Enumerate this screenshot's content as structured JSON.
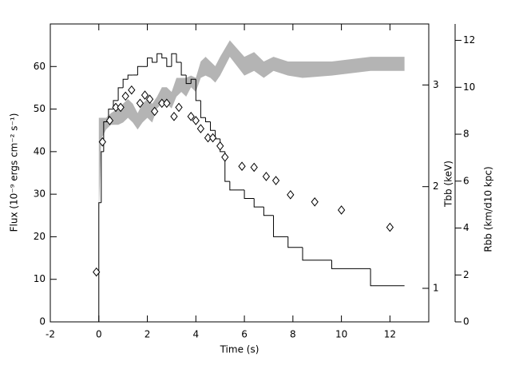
{
  "chart_data": [
    {
      "type": "histogram",
      "xlabel": "Time (s)",
      "ylabel": "Flux (10⁻⁹ ergs cm⁻² s⁻¹)",
      "xlim": [
        -2,
        13.6
      ],
      "xticks": [
        -2,
        0,
        2,
        4,
        6,
        8,
        10,
        12
      ],
      "ylim": [
        0,
        70
      ],
      "yticks": [
        0,
        10,
        20,
        30,
        40,
        50,
        60
      ],
      "color": "#000000",
      "bins": [
        0,
        0.1,
        0.2,
        0.4,
        0.6,
        0.8,
        1.0,
        1.2,
        1.4,
        1.6,
        1.8,
        2.0,
        2.2,
        2.4,
        2.6,
        2.8,
        3.0,
        3.2,
        3.4,
        3.6,
        3.8,
        4.0,
        4.2,
        4.4,
        4.6,
        4.8,
        5.0,
        5.2,
        5.4,
        6.0,
        6.4,
        6.8,
        7.2,
        7.8,
        8.4,
        9.6,
        11.2,
        12.6
      ],
      "values": [
        28,
        40,
        47,
        50,
        52,
        55,
        57,
        58,
        58,
        60,
        60,
        62,
        61,
        63,
        62,
        60,
        63,
        61,
        58,
        56,
        57,
        52,
        48,
        47,
        45,
        43,
        40,
        33,
        31,
        29,
        27,
        25,
        20,
        17.5,
        14.5,
        12.5,
        8.5
      ]
    },
    {
      "type": "scatter",
      "ylabel": "Tbb (keV)",
      "ylim": [
        0.67,
        3.6
      ],
      "yticks": [
        1,
        2,
        3
      ],
      "color": "#000000",
      "x": [
        -0.1,
        0.15,
        0.45,
        0.7,
        0.9,
        1.1,
        1.35,
        1.7,
        1.9,
        2.1,
        2.3,
        2.6,
        2.8,
        3.1,
        3.3,
        3.8,
        4.0,
        4.2,
        4.5,
        4.7,
        5.0,
        5.2,
        5.9,
        6.4,
        6.9,
        7.3,
        7.9,
        8.9,
        10.0,
        12.0
      ],
      "values": [
        1.16,
        2.44,
        2.65,
        2.78,
        2.78,
        2.89,
        2.95,
        2.82,
        2.9,
        2.86,
        2.74,
        2.82,
        2.82,
        2.69,
        2.78,
        2.69,
        2.65,
        2.57,
        2.48,
        2.48,
        2.4,
        2.29,
        2.2,
        2.19,
        2.1,
        2.06,
        1.92,
        1.85,
        1.77,
        1.6
      ]
    },
    {
      "type": "band",
      "ylabel": "Rbb (km/d10 kpc)",
      "ylim": [
        0,
        12.7
      ],
      "yticks": [
        0,
        2,
        4,
        6,
        8,
        10,
        12
      ],
      "color": "#b4b4b4",
      "x": [
        0,
        0.1,
        0.3,
        0.5,
        0.8,
        1.0,
        1.2,
        1.4,
        1.6,
        1.8,
        2.0,
        2.2,
        2.4,
        2.6,
        2.8,
        3.0,
        3.2,
        3.4,
        3.6,
        3.8,
        4.0,
        4.2,
        4.4,
        4.6,
        4.8,
        5.0,
        5.4,
        6.0,
        6.4,
        6.8,
        7.2,
        7.8,
        8.4,
        9.6,
        11.2,
        12.6
      ],
      "lower": [
        4.5,
        7.8,
        8.2,
        8.4,
        8.4,
        8.5,
        8.7,
        8.5,
        8.2,
        8.5,
        8.7,
        8.5,
        9.1,
        9.3,
        9.3,
        9.1,
        9.6,
        9.8,
        9.6,
        10.0,
        9.8,
        10.4,
        10.5,
        10.4,
        10.2,
        10.5,
        11.3,
        10.5,
        10.7,
        10.4,
        10.7,
        10.5,
        10.4,
        10.5,
        10.7,
        10.7
      ],
      "upper": [
        8.7,
        8.7,
        8.7,
        8.9,
        9.1,
        9.3,
        9.5,
        9.3,
        8.9,
        9.3,
        9.5,
        9.3,
        9.6,
        10.0,
        10.0,
        9.8,
        10.4,
        10.4,
        10.4,
        10.5,
        10.4,
        11.1,
        11.3,
        11.1,
        10.9,
        11.3,
        12.0,
        11.3,
        11.5,
        11.1,
        11.3,
        11.1,
        11.1,
        11.1,
        11.3,
        11.3
      ]
    }
  ]
}
